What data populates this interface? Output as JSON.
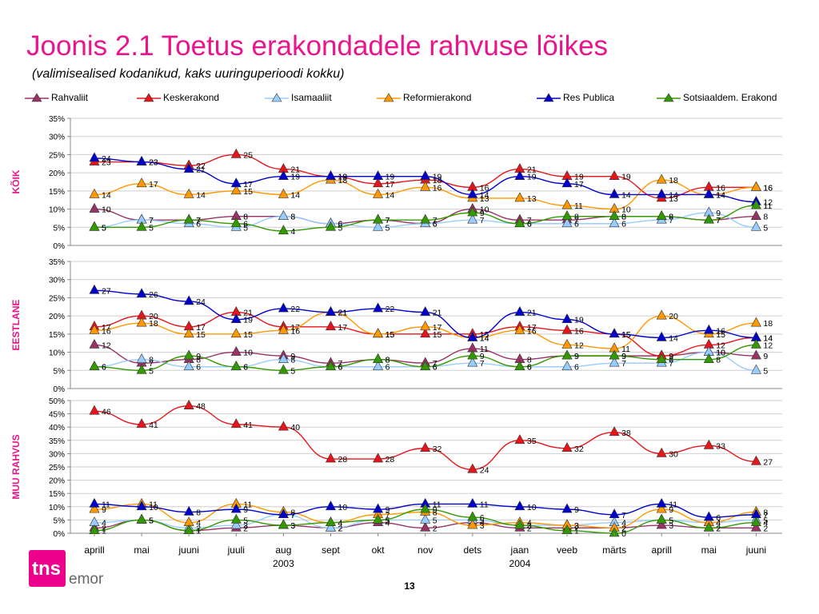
{
  "title": "Joonis 2.1 Toetus erakondadele rahvuse lõikes",
  "subtitle": "(valimisealised kodanikud, kaks uuringuperioodi kokku)",
  "page_number": "13",
  "logo": {
    "mark": "tns",
    "name": "emor"
  },
  "colors": {
    "title": "#e8158c",
    "grid": "#cfcfcf"
  },
  "legend": [
    {
      "name": "Rahvaliit",
      "color": "#993366"
    },
    {
      "name": "Keskerakond",
      "color": "#e8141b"
    },
    {
      "name": "Isamaaliit",
      "color": "#99ccff"
    },
    {
      "name": "Reformierakond",
      "color": "#ff9900"
    },
    {
      "name": "Res Publica",
      "color": "#0000cc"
    },
    {
      "name": "Sotsiaaldem. Erakond",
      "color": "#339900"
    }
  ],
  "chart_data": [
    {
      "type": "line",
      "panel_label": "KÕIK",
      "ylim": [
        0,
        35
      ],
      "yticks": [
        "0%",
        "5%",
        "10%",
        "15%",
        "20%",
        "25%",
        "30%",
        "35%"
      ],
      "categories": [
        "aprill",
        "mai",
        "juuni",
        "juuli",
        "aug",
        "sept",
        "okt",
        "nov",
        "dets",
        "jaan",
        "veeb",
        "märts",
        "aprill",
        "mai",
        "juuni"
      ],
      "year_labels": [
        {
          "at": 4,
          "text": "2003"
        },
        {
          "at": 9,
          "text": "2004"
        }
      ],
      "series": [
        {
          "name": "Rahvaliit",
          "values": [
            10,
            7,
            7,
            8,
            8,
            6,
            7,
            6,
            10,
            7,
            7,
            8,
            8,
            7,
            8
          ]
        },
        {
          "name": "Keskerakond",
          "values": [
            23,
            23,
            22,
            25,
            21,
            19,
            17,
            18,
            16,
            21,
            19,
            19,
            13,
            16,
            16
          ]
        },
        {
          "name": "Isamaaliit",
          "values": [
            5,
            7,
            6,
            5,
            8,
            6,
            5,
            6,
            7,
            6,
            6,
            6,
            7,
            9,
            5
          ]
        },
        {
          "name": "Reformierakond",
          "values": [
            14,
            17,
            14,
            15,
            14,
            18,
            14,
            16,
            13,
            13,
            11,
            10,
            18,
            14,
            16
          ]
        },
        {
          "name": "Res Publica",
          "values": [
            24,
            23,
            21,
            17,
            19,
            19,
            19,
            19,
            14,
            19,
            17,
            14,
            14,
            14,
            12
          ]
        },
        {
          "name": "Sotsiaaldem. Erakond",
          "values": [
            5,
            5,
            7,
            6,
            4,
            5,
            7,
            7,
            9,
            6,
            8,
            8,
            8,
            7,
            11
          ]
        }
      ]
    },
    {
      "type": "line",
      "panel_label": "EESTLANE",
      "ylim": [
        0,
        35
      ],
      "yticks": [
        "0%",
        "5%",
        "10%",
        "15%",
        "20%",
        "25%",
        "30%",
        "35%"
      ],
      "categories": [
        "aprill",
        "mai",
        "juuni",
        "juuli",
        "aug",
        "sept",
        "okt",
        "nov",
        "dets",
        "jaan",
        "veeb",
        "märts",
        "aprill",
        "mai",
        "juuni"
      ],
      "series": [
        {
          "name": "Rahvaliit",
          "values": [
            12,
            7,
            8,
            10,
            9,
            7,
            8,
            7,
            11,
            8,
            9,
            9,
            9,
            10,
            9
          ]
        },
        {
          "name": "Keskerakond",
          "values": [
            17,
            20,
            17,
            21,
            17,
            17,
            15,
            15,
            15,
            17,
            16,
            15,
            9,
            12,
            14
          ]
        },
        {
          "name": "Isamaaliit",
          "values": [
            6,
            8,
            6,
            6,
            8,
            6,
            6,
            6,
            7,
            6,
            6,
            7,
            7,
            10,
            5
          ]
        },
        {
          "name": "Reformierakond",
          "values": [
            16,
            18,
            15,
            15,
            16,
            21,
            15,
            17,
            14,
            16,
            12,
            11,
            20,
            15,
            18
          ]
        },
        {
          "name": "Res Publica",
          "values": [
            27,
            26,
            24,
            19,
            22,
            21,
            22,
            21,
            14,
            21,
            19,
            15,
            14,
            16,
            14
          ]
        },
        {
          "name": "Sotsiaaldem. Erakond",
          "values": [
            6,
            5,
            9,
            6,
            5,
            6,
            8,
            6,
            9,
            6,
            9,
            9,
            8,
            8,
            12
          ]
        }
      ]
    },
    {
      "type": "line",
      "panel_label": "MUU RAHVUS",
      "ylim": [
        0,
        50
      ],
      "yticks": [
        "0%",
        "5%",
        "10%",
        "15%",
        "20%",
        "25%",
        "30%",
        "35%",
        "40%",
        "45%",
        "50%"
      ],
      "categories": [
        "aprill",
        "mai",
        "juuni",
        "juuli",
        "aug",
        "sept",
        "okt",
        "nov",
        "dets",
        "jaan",
        "veeb",
        "märts",
        "aprill",
        "mai",
        "juuni"
      ],
      "series": [
        {
          "name": "Rahvaliit",
          "values": [
            2,
            5,
            1,
            2,
            3,
            2,
            4,
            2,
            4,
            2,
            2,
            2,
            3,
            2,
            2
          ]
        },
        {
          "name": "Keskerakond",
          "values": [
            46,
            41,
            48,
            41,
            40,
            28,
            28,
            32,
            24,
            35,
            32,
            38,
            30,
            33,
            27
          ]
        },
        {
          "name": "Isamaaliit",
          "values": [
            4,
            5,
            2,
            3,
            7,
            2,
            5,
            5,
            5,
            3,
            3,
            4,
            5,
            4,
            5
          ]
        },
        {
          "name": "Reformierakond",
          "values": [
            9,
            11,
            4,
            11,
            8,
            4,
            7,
            8,
            3,
            4,
            3,
            2,
            9,
            4,
            8
          ]
        },
        {
          "name": "Res Publica",
          "values": [
            11,
            10,
            8,
            9,
            7,
            10,
            9,
            11,
            11,
            10,
            9,
            7,
            11,
            6,
            7
          ]
        },
        {
          "name": "Sotsiaaldem. Erakond",
          "values": [
            1,
            5,
            1,
            5,
            3,
            4,
            5,
            9,
            6,
            3,
            1,
            0,
            5,
            2,
            4
          ]
        }
      ]
    }
  ]
}
